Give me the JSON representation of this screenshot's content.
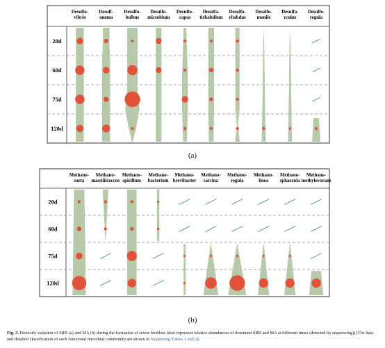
{
  "panel_a": {
    "label": "(a)",
    "rows": [
      "20d",
      "60d",
      "75d",
      "120d"
    ],
    "columns": [
      {
        "name": [
          "Desulfo-",
          "vibrio"
        ],
        "shape": [
          0.42,
          0.42,
          0.42,
          0.42,
          0.42,
          0.42,
          0.42,
          0.42
        ],
        "dots": [
          0.35,
          0.55,
          0.55,
          0.4
        ]
      },
      {
        "name": [
          "Desulf-",
          "onema"
        ],
        "shape": [
          0.35,
          0.35,
          0.42,
          0.42,
          0.42,
          0.42,
          0.42,
          0.42
        ],
        "dots": [
          0.2,
          0.35,
          0.25,
          0.45
        ]
      },
      {
        "name": [
          "Desulfo-",
          "bulbus"
        ],
        "shape": [
          0.55,
          0.55,
          0.55,
          0.55,
          0.55,
          0.75,
          0.45,
          0.05
        ],
        "dots": [
          0.08,
          0.6,
          1.0,
          0.1
        ]
      },
      {
        "name": [
          "Desulfo-",
          "microbium"
        ],
        "shape": [
          0.3,
          0.3,
          0.3,
          0.3,
          0.3,
          0.3,
          0.3,
          0.3
        ],
        "dots": [
          0.3,
          0.3,
          null,
          null
        ]
      },
      {
        "name": [
          "Desulfo-",
          "capsa"
        ],
        "shape": [
          0.15,
          0.2,
          0.25,
          0.3,
          0.3,
          0.3,
          0.25,
          0.2
        ],
        "dots": [
          0.1,
          0.1,
          0.35,
          0.1
        ]
      },
      {
        "name": [
          "Desulfa-",
          "tirhabdium"
        ],
        "shape": [
          0.3,
          0.3,
          0.3,
          0.3,
          0.3,
          0.3,
          0.28,
          0.25
        ],
        "dots": [
          0.1,
          0.2,
          0.15,
          0.1
        ]
      },
      {
        "name": [
          "Desulfo-",
          "rhabdus"
        ],
        "shape": [
          0.22,
          0.22,
          0.22,
          0.22,
          0.22,
          0.22,
          0.05,
          0.25
        ],
        "dots": [
          0.1,
          0.1,
          0.1,
          0.1
        ]
      },
      {
        "name": [
          "Desulfo-",
          "monile"
        ],
        "shape": [
          0.0,
          0.05,
          0.07,
          0.1,
          0.12,
          0.15,
          0.18,
          0.22
        ],
        "dots": [
          null,
          null,
          null,
          0.1
        ]
      },
      {
        "name": [
          "Desulfa-",
          "rculus"
        ],
        "shape": [
          0.0,
          0.05,
          0.08,
          0.1,
          0.12,
          0.15,
          0.18,
          0.22
        ],
        "dots": [
          null,
          null,
          null,
          0.05
        ]
      },
      {
        "name": [
          "Desulfo-",
          "regula"
        ],
        "shape": null,
        "dots": [
          null,
          null,
          null,
          0.1
        ],
        "absent": [
          true,
          true,
          true,
          false
        ],
        "late_start": true
      }
    ]
  },
  "panel_b": {
    "label": "(b)",
    "rows": [
      "20d",
      "60d",
      "75d",
      "120d"
    ],
    "columns": [
      {
        "name": [
          "Methano-",
          "saeta"
        ],
        "dots": [
          0.1,
          0.2,
          0.35,
          0.9
        ],
        "present": [
          true,
          true,
          true,
          true
        ]
      },
      {
        "name": [
          "Methano-",
          "massiliicoccus"
        ],
        "dots": [
          0.1,
          0.1,
          null,
          null
        ],
        "present": [
          true,
          true,
          false,
          false
        ]
      },
      {
        "name": [
          "Methano-",
          "spirillum"
        ],
        "dots": [
          0.1,
          0.15,
          0.6,
          0.5
        ],
        "present": [
          true,
          true,
          true,
          true
        ]
      },
      {
        "name": [
          "Methano-",
          "bacterium"
        ],
        "dots": [
          0.05,
          0.05,
          null,
          null
        ],
        "present": [
          true,
          true,
          false,
          false
        ]
      },
      {
        "name": [
          "Methano-",
          "brevibacter"
        ],
        "dots": [
          null,
          null,
          0.05,
          0.05
        ],
        "present": [
          false,
          false,
          true,
          true
        ]
      },
      {
        "name": [
          "Methano-",
          "sarcina"
        ],
        "dots": [
          null,
          null,
          0.05,
          0.7
        ],
        "present": [
          false,
          false,
          true,
          true
        ]
      },
      {
        "name": [
          "Methano-",
          "regula"
        ],
        "dots": [
          null,
          null,
          0.05,
          1.0
        ],
        "present": [
          false,
          false,
          true,
          true
        ]
      },
      {
        "name": [
          "Methano-",
          "linea"
        ],
        "dots": [
          null,
          null,
          0.05,
          0.55
        ],
        "present": [
          false,
          false,
          true,
          true
        ]
      },
      {
        "name": [
          "Methano-",
          "sphaerula"
        ],
        "dots": [
          null,
          null,
          0.05,
          0.55
        ],
        "present": [
          false,
          false,
          true,
          true
        ]
      },
      {
        "name": [
          "Methano-",
          "methylovorans"
        ],
        "dots": [
          null,
          null,
          null,
          0.55
        ],
        "present": [
          false,
          false,
          false,
          true
        ]
      }
    ]
  },
  "caption": {
    "fig": "Fig. 3.",
    "text": " Diversity variation of SRB (a) and MA (b) during the formation of sewer biofilms (dots represent relative abundances of dominant SRB and MA at different times (detected by sequencing)) (The data and detailed classification of each functional microbial community are shown in ",
    "link": "Supporting Tables 1 and 2",
    "end": ")."
  },
  "colors": {
    "shape": "#b6c9a8",
    "dot": "#e0533a",
    "slash": "#3a8a8a",
    "border": "#333333",
    "dash": "#888888"
  }
}
